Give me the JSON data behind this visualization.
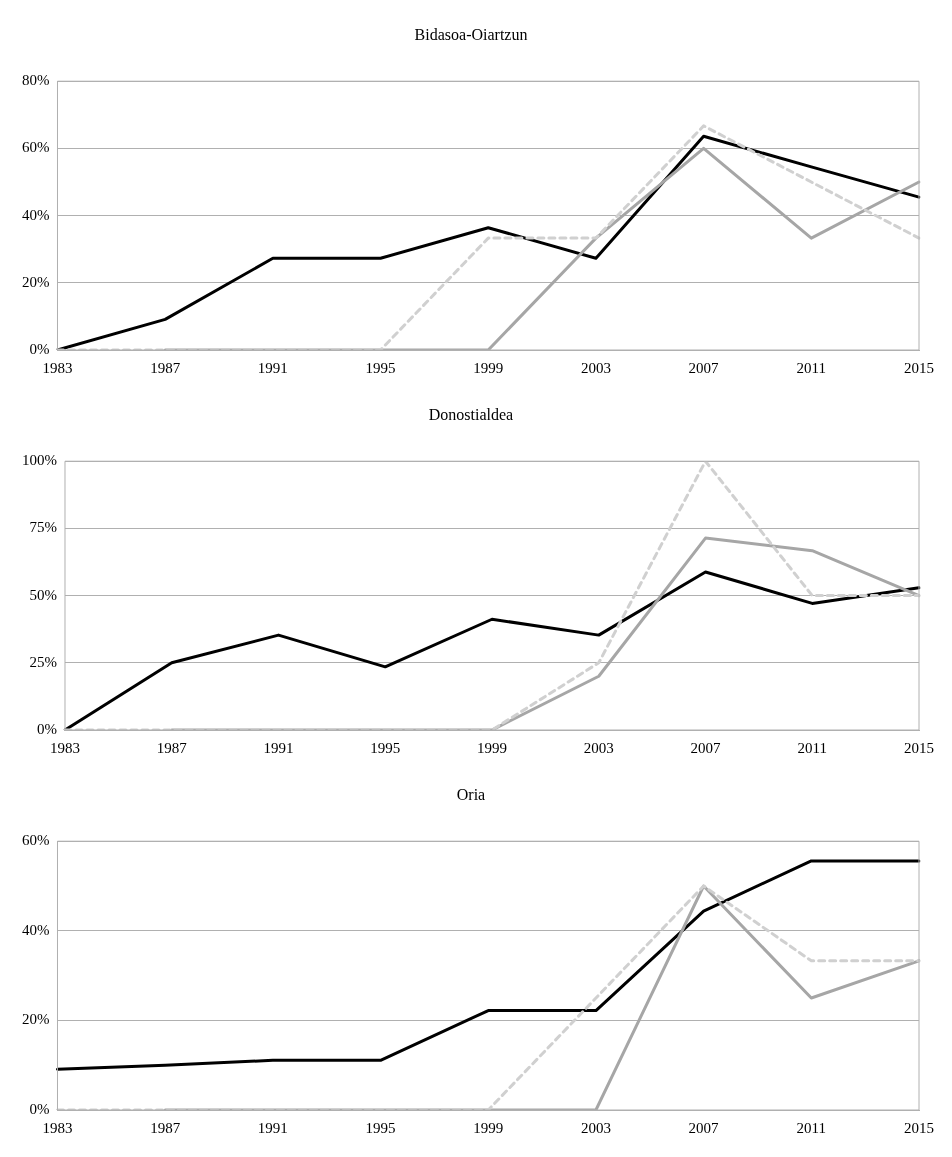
{
  "chart_data": [
    {
      "type": "line",
      "title": "Bidasoa-Oiartzun",
      "categories": [
        "1983",
        "1987",
        "1991",
        "1995",
        "1999",
        "2003",
        "2007",
        "2011",
        "2015"
      ],
      "ylim": [
        0,
        80
      ],
      "yticks": [
        {
          "value": 0,
          "label": "0%"
        },
        {
          "value": 20,
          "label": "20%"
        },
        {
          "value": 40,
          "label": "40%"
        },
        {
          "value": 60,
          "label": "60%"
        },
        {
          "value": 80,
          "label": "80%"
        }
      ],
      "grid": "y",
      "legend": false,
      "marker": "none",
      "series": [
        {
          "color": "#d0d0d0",
          "line_style": "dashed",
          "values": [
            0,
            0,
            0,
            0,
            33.3,
            33.3,
            66.7,
            50,
            33.3
          ]
        },
        {
          "color": "#a6a6a6",
          "line_style": "solid",
          "values": [
            null,
            0,
            0,
            0,
            0,
            33.3,
            60,
            33.3,
            50
          ]
        },
        {
          "color": "#000000",
          "line_style": "solid",
          "values": [
            0,
            9.1,
            27.3,
            27.3,
            36.4,
            27.3,
            63.6,
            54.5,
            45.5
          ]
        }
      ]
    },
    {
      "type": "line",
      "title": "Donostialdea",
      "categories": [
        "1983",
        "1987",
        "1991",
        "1995",
        "1999",
        "2003",
        "2007",
        "2011",
        "2015"
      ],
      "ylim": [
        0,
        100
      ],
      "yticks": [
        {
          "value": 0,
          "label": "0%"
        },
        {
          "value": 25,
          "label": "25%"
        },
        {
          "value": 50,
          "label": "50%"
        },
        {
          "value": 75,
          "label": "75%"
        },
        {
          "value": 100,
          "label": "100%"
        }
      ],
      "grid": "y",
      "legend": false,
      "marker": "none",
      "series": [
        {
          "color": "#d0d0d0",
          "line_style": "dashed",
          "values": [
            0,
            0,
            0,
            0,
            0,
            25,
            100,
            50,
            50
          ]
        },
        {
          "color": "#a6a6a6",
          "line_style": "solid",
          "values": [
            null,
            0,
            0,
            0,
            0,
            20,
            71.4,
            66.7,
            50
          ]
        },
        {
          "color": "#000000",
          "line_style": "solid",
          "values": [
            0,
            25,
            35.3,
            23.5,
            41.2,
            35.3,
            58.8,
            47.1,
            52.9
          ]
        }
      ]
    },
    {
      "type": "line",
      "title": "Oria",
      "categories": [
        "1983",
        "1987",
        "1991",
        "1995",
        "1999",
        "2003",
        "2007",
        "2011",
        "2015"
      ],
      "ylim": [
        0,
        60
      ],
      "yticks": [
        {
          "value": 0,
          "label": "0%"
        },
        {
          "value": 20,
          "label": "20%"
        },
        {
          "value": 40,
          "label": "40%"
        },
        {
          "value": 60,
          "label": "60%"
        }
      ],
      "grid": "y",
      "legend": false,
      "marker": "none",
      "series": [
        {
          "color": "#d0d0d0",
          "line_style": "dashed",
          "values": [
            0,
            0,
            0,
            0,
            0,
            25,
            50,
            33.3,
            33.3
          ]
        },
        {
          "color": "#a6a6a6",
          "line_style": "solid",
          "values": [
            null,
            0,
            0,
            0,
            0,
            0,
            50,
            25,
            33.3
          ]
        },
        {
          "color": "#000000",
          "line_style": "solid",
          "values": [
            9.1,
            10,
            11.1,
            11.1,
            22.2,
            22.2,
            44.4,
            55.6,
            55.6
          ]
        }
      ]
    }
  ]
}
